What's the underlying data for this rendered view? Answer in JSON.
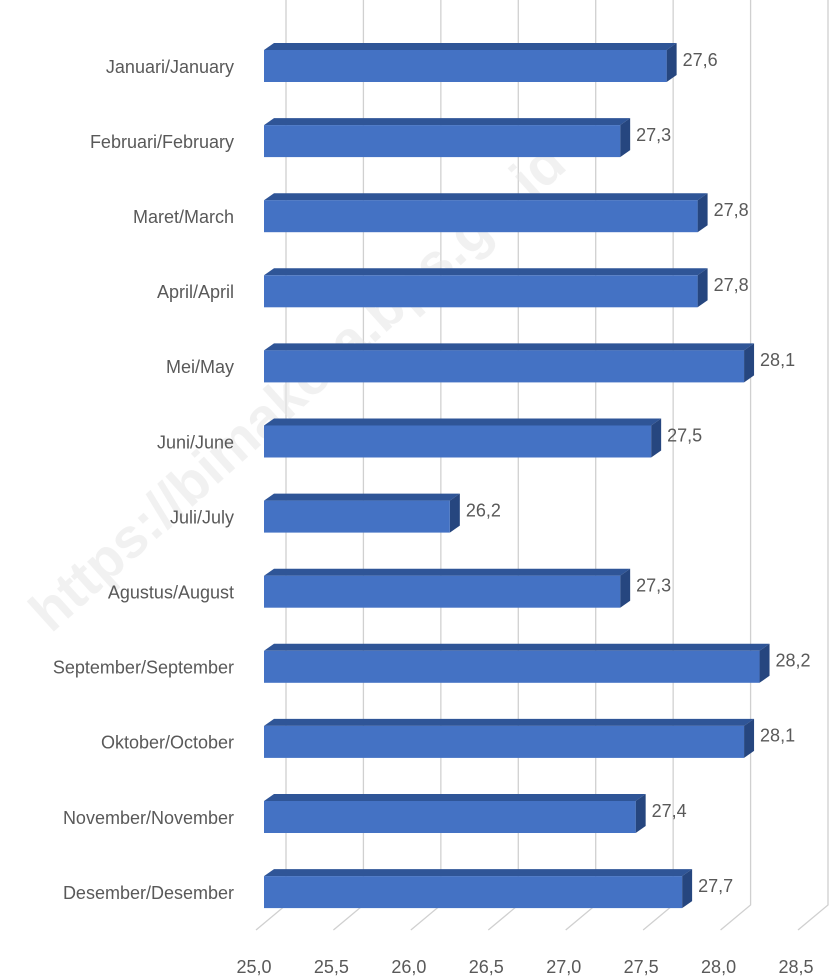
{
  "chart_data": {
    "type": "bar",
    "orientation": "horizontal",
    "watermark": "https://bimakota.bps.go.id",
    "categories": [
      "Januari/January",
      "Februari/February",
      "Maret/March",
      "April/April",
      "Mei/May",
      "Juni/June",
      "Juli/July",
      "Agustus/August",
      "September/September",
      "Oktober/October",
      "November/November",
      "Desember/Desember"
    ],
    "values": [
      27.6,
      27.3,
      27.8,
      27.8,
      28.1,
      27.5,
      26.2,
      27.3,
      28.2,
      28.1,
      27.4,
      27.7
    ],
    "value_labels": [
      "27,6",
      "27,3",
      "27,8",
      "27,8",
      "28,1",
      "27,5",
      "26,2",
      "27,3",
      "28,2",
      "28,1",
      "27,4",
      "27,7"
    ],
    "color": "#4472c4",
    "xlim": [
      25,
      28.5
    ],
    "xticks": [
      {
        "value": 25,
        "label": "25,0"
      },
      {
        "value": 25.5,
        "label": "25,5"
      },
      {
        "value": 26,
        "label": "26,0"
      },
      {
        "value": 26.5,
        "label": "26,5"
      },
      {
        "value": 27,
        "label": "27,0"
      },
      {
        "value": 27.5,
        "label": "27,5"
      },
      {
        "value": 28,
        "label": "28,0"
      },
      {
        "value": 28.5,
        "label": "28,5"
      }
    ],
    "grid": true
  }
}
